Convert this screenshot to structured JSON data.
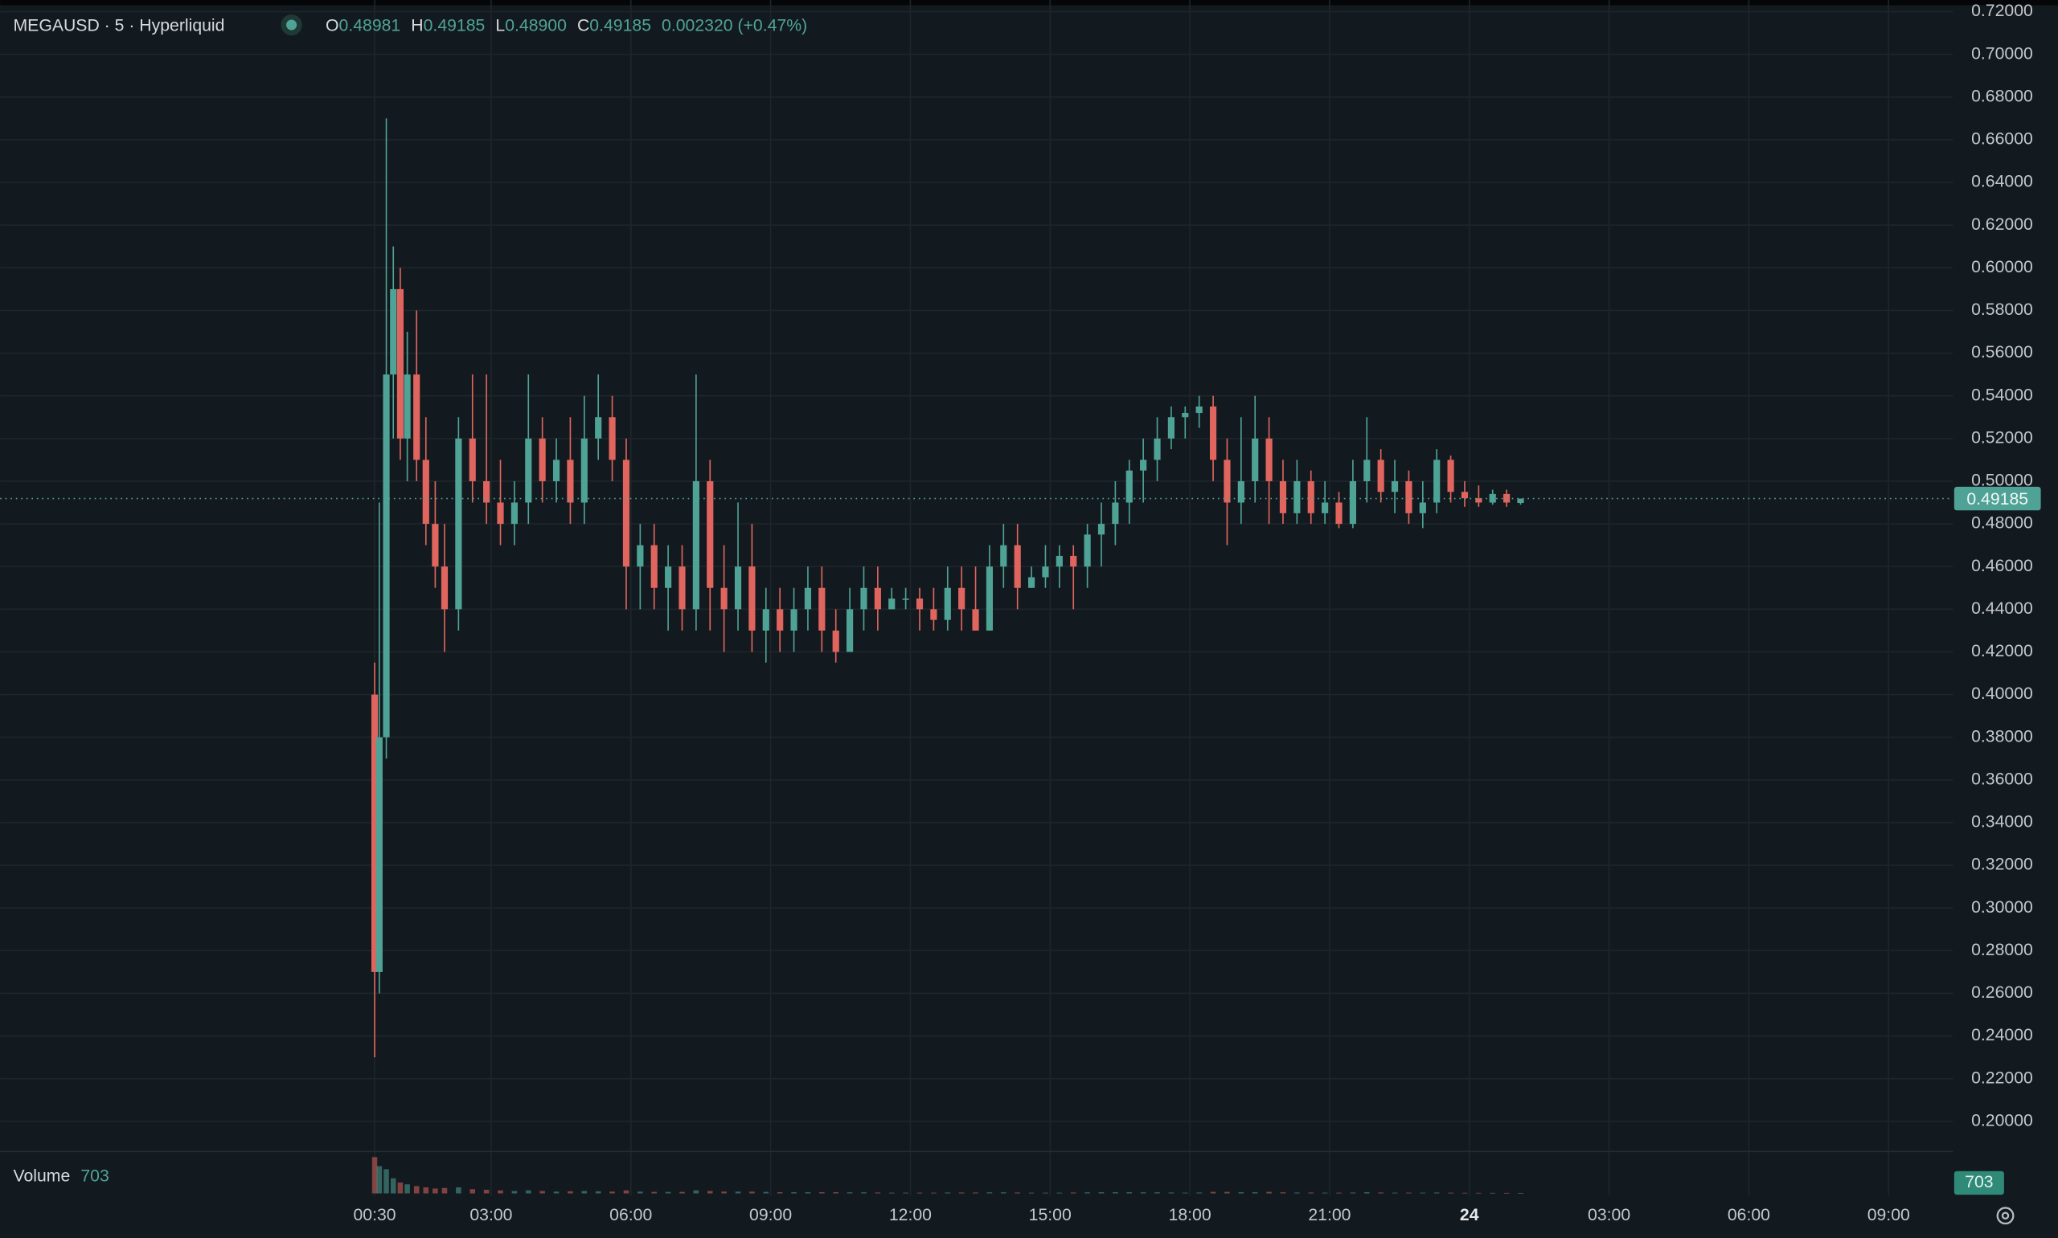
{
  "chart_data": {
    "type": "candlestick",
    "symbol": "MEGAUSD · 5 · Hyperliquid",
    "ohlc_legend": {
      "o_label": "O",
      "open": "0.48981",
      "h_label": "H",
      "high": "0.49185",
      "l_label": "L",
      "low": "0.48900",
      "c_label": "C",
      "close": "0.49185",
      "change": "0.002320 (+0.47%)"
    },
    "last_price": {
      "value": 0.49185,
      "label": "0.49185"
    },
    "volume_label": "Volume",
    "last_volume": "703",
    "volume_badge": "703",
    "up_color": "#4fa396",
    "down_color": "#e0655e",
    "grid": true,
    "xlim": [
      -7.54,
      34.38
    ],
    "ylim": [
      0.1859,
      0.7255
    ],
    "vlim": [
      0,
      65000
    ],
    "xticks": [
      {
        "value": 0.5,
        "label": "00:30"
      },
      {
        "value": 3,
        "label": "03:00"
      },
      {
        "value": 6,
        "label": "06:00"
      },
      {
        "value": 9,
        "label": "09:00"
      },
      {
        "value": 12,
        "label": "12:00"
      },
      {
        "value": 15,
        "label": "15:00"
      },
      {
        "value": 18,
        "label": "18:00"
      },
      {
        "value": 21,
        "label": "21:00"
      },
      24,
      {
        "value": 27,
        "label": "03:00"
      },
      {
        "value": 30,
        "label": "06:00"
      },
      {
        "value": 33,
        "label": "09:00"
      }
    ],
    "yticks": [
      {
        "value": 0.2,
        "label": "0.20000"
      },
      {
        "value": 0.22,
        "label": "0.22000"
      },
      {
        "value": 0.24,
        "label": "0.24000"
      },
      {
        "value": 0.26,
        "label": "0.26000"
      },
      {
        "value": 0.28,
        "label": "0.28000"
      },
      {
        "value": 0.3,
        "label": "0.30000"
      },
      {
        "value": 0.32,
        "label": "0.32000"
      },
      {
        "value": 0.34,
        "label": "0.34000"
      },
      {
        "value": 0.36,
        "label": "0.36000"
      },
      {
        "value": 0.38,
        "label": "0.38000"
      },
      {
        "value": 0.4,
        "label": "0.40000"
      },
      {
        "value": 0.42,
        "label": "0.42000"
      },
      {
        "value": 0.44,
        "label": "0.44000"
      },
      {
        "value": 0.46,
        "label": "0.46000"
      },
      {
        "value": 0.48,
        "label": "0.48000"
      },
      {
        "value": 0.5,
        "label": "0.50000"
      },
      {
        "value": 0.52,
        "label": "0.52000"
      },
      {
        "value": 0.54,
        "label": "0.54000"
      },
      {
        "value": 0.56,
        "label": "0.56000"
      },
      {
        "value": 0.58,
        "label": "0.58000"
      },
      {
        "value": 0.6,
        "label": "0.60000"
      },
      {
        "value": 0.62,
        "label": "0.62000"
      },
      {
        "value": 0.64,
        "label": "0.64000"
      },
      {
        "value": 0.66,
        "label": "0.66000"
      },
      {
        "value": 0.68,
        "label": "0.68000"
      },
      {
        "value": 0.7,
        "label": "0.70000"
      },
      {
        "value": 0.72,
        "label": "0.72000"
      }
    ],
    "candles": [
      {
        "x": 0.5,
        "open": 0.4,
        "high": 0.415,
        "low": 0.23,
        "close": 0.27,
        "volume": 60000
      },
      {
        "x": 0.6,
        "open": 0.27,
        "high": 0.49,
        "low": 0.26,
        "close": 0.38,
        "volume": 45000
      },
      {
        "x": 0.75,
        "open": 0.38,
        "high": 0.67,
        "low": 0.37,
        "close": 0.55,
        "volume": 40000
      },
      {
        "x": 0.9,
        "open": 0.55,
        "high": 0.61,
        "low": 0.52,
        "close": 0.59,
        "volume": 25000
      },
      {
        "x": 1.05,
        "open": 0.59,
        "high": 0.6,
        "low": 0.51,
        "close": 0.52,
        "volume": 18000
      },
      {
        "x": 1.2,
        "open": 0.52,
        "high": 0.57,
        "low": 0.5,
        "close": 0.55,
        "volume": 15000
      },
      {
        "x": 1.4,
        "open": 0.55,
        "high": 0.58,
        "low": 0.5,
        "close": 0.51,
        "volume": 12000
      },
      {
        "x": 1.6,
        "open": 0.51,
        "high": 0.53,
        "low": 0.47,
        "close": 0.48,
        "volume": 10000
      },
      {
        "x": 1.8,
        "open": 0.48,
        "high": 0.5,
        "low": 0.45,
        "close": 0.46,
        "volume": 8000
      },
      {
        "x": 2.0,
        "open": 0.46,
        "high": 0.48,
        "low": 0.42,
        "close": 0.44,
        "volume": 9000
      },
      {
        "x": 2.3,
        "open": 0.44,
        "high": 0.53,
        "low": 0.43,
        "close": 0.52,
        "volume": 10000
      },
      {
        "x": 2.6,
        "open": 0.52,
        "high": 0.55,
        "low": 0.49,
        "close": 0.5,
        "volume": 7000
      },
      {
        "x": 2.9,
        "open": 0.5,
        "high": 0.55,
        "low": 0.48,
        "close": 0.49,
        "volume": 6000
      },
      {
        "x": 3.2,
        "open": 0.49,
        "high": 0.51,
        "low": 0.47,
        "close": 0.48,
        "volume": 5000
      },
      {
        "x": 3.5,
        "open": 0.48,
        "high": 0.5,
        "low": 0.47,
        "close": 0.49,
        "volume": 4000
      },
      {
        "x": 3.8,
        "open": 0.49,
        "high": 0.55,
        "low": 0.48,
        "close": 0.52,
        "volume": 5000
      },
      {
        "x": 4.1,
        "open": 0.52,
        "high": 0.53,
        "low": 0.49,
        "close": 0.5,
        "volume": 4000
      },
      {
        "x": 4.4,
        "open": 0.5,
        "high": 0.52,
        "low": 0.49,
        "close": 0.51,
        "volume": 3000
      },
      {
        "x": 4.7,
        "open": 0.51,
        "high": 0.53,
        "low": 0.48,
        "close": 0.49,
        "volume": 3500
      },
      {
        "x": 5.0,
        "open": 0.49,
        "high": 0.54,
        "low": 0.48,
        "close": 0.52,
        "volume": 4000
      },
      {
        "x": 5.3,
        "open": 0.52,
        "high": 0.55,
        "low": 0.51,
        "close": 0.53,
        "volume": 3500
      },
      {
        "x": 5.6,
        "open": 0.53,
        "high": 0.54,
        "low": 0.5,
        "close": 0.51,
        "volume": 3000
      },
      {
        "x": 5.9,
        "open": 0.51,
        "high": 0.52,
        "low": 0.44,
        "close": 0.46,
        "volume": 5000
      },
      {
        "x": 6.2,
        "open": 0.46,
        "high": 0.48,
        "low": 0.44,
        "close": 0.47,
        "volume": 3000
      },
      {
        "x": 6.5,
        "open": 0.47,
        "high": 0.48,
        "low": 0.44,
        "close": 0.45,
        "volume": 2500
      },
      {
        "x": 6.8,
        "open": 0.45,
        "high": 0.47,
        "low": 0.43,
        "close": 0.46,
        "volume": 2500
      },
      {
        "x": 7.1,
        "open": 0.46,
        "high": 0.47,
        "low": 0.43,
        "close": 0.44,
        "volume": 2500
      },
      {
        "x": 7.4,
        "open": 0.44,
        "high": 0.55,
        "low": 0.43,
        "close": 0.5,
        "volume": 5000
      },
      {
        "x": 7.7,
        "open": 0.5,
        "high": 0.51,
        "low": 0.43,
        "close": 0.45,
        "volume": 4000
      },
      {
        "x": 8.0,
        "open": 0.45,
        "high": 0.47,
        "low": 0.42,
        "close": 0.44,
        "volume": 3000
      },
      {
        "x": 8.3,
        "open": 0.44,
        "high": 0.49,
        "low": 0.43,
        "close": 0.46,
        "volume": 3000
      },
      {
        "x": 8.6,
        "open": 0.46,
        "high": 0.48,
        "low": 0.42,
        "close": 0.43,
        "volume": 3000
      },
      {
        "x": 8.9,
        "open": 0.43,
        "high": 0.45,
        "low": 0.415,
        "close": 0.44,
        "volume": 2500
      },
      {
        "x": 9.2,
        "open": 0.44,
        "high": 0.45,
        "low": 0.42,
        "close": 0.43,
        "volume": 2000
      },
      {
        "x": 9.5,
        "open": 0.43,
        "high": 0.45,
        "low": 0.42,
        "close": 0.44,
        "volume": 2000
      },
      {
        "x": 9.8,
        "open": 0.44,
        "high": 0.46,
        "low": 0.43,
        "close": 0.45,
        "volume": 2000
      },
      {
        "x": 10.1,
        "open": 0.45,
        "high": 0.46,
        "low": 0.42,
        "close": 0.43,
        "volume": 2000
      },
      {
        "x": 10.4,
        "open": 0.43,
        "high": 0.44,
        "low": 0.415,
        "close": 0.42,
        "volume": 2000
      },
      {
        "x": 10.7,
        "open": 0.42,
        "high": 0.45,
        "low": 0.42,
        "close": 0.44,
        "volume": 1800
      },
      {
        "x": 11.0,
        "open": 0.44,
        "high": 0.46,
        "low": 0.43,
        "close": 0.45,
        "volume": 1800
      },
      {
        "x": 11.3,
        "open": 0.45,
        "high": 0.46,
        "low": 0.43,
        "close": 0.44,
        "volume": 1500
      },
      {
        "x": 11.6,
        "open": 0.44,
        "high": 0.45,
        "low": 0.44,
        "close": 0.445,
        "volume": 1200
      },
      {
        "x": 11.9,
        "open": 0.445,
        "high": 0.45,
        "low": 0.44,
        "close": 0.445,
        "volume": 1200
      },
      {
        "x": 12.2,
        "open": 0.445,
        "high": 0.45,
        "low": 0.43,
        "close": 0.44,
        "volume": 1200
      },
      {
        "x": 12.5,
        "open": 0.44,
        "high": 0.45,
        "low": 0.43,
        "close": 0.435,
        "volume": 1200
      },
      {
        "x": 12.8,
        "open": 0.435,
        "high": 0.46,
        "low": 0.43,
        "close": 0.45,
        "volume": 1500
      },
      {
        "x": 13.1,
        "open": 0.45,
        "high": 0.46,
        "low": 0.43,
        "close": 0.44,
        "volume": 1500
      },
      {
        "x": 13.4,
        "open": 0.44,
        "high": 0.46,
        "low": 0.43,
        "close": 0.43,
        "volume": 1500
      },
      {
        "x": 13.7,
        "open": 0.43,
        "high": 0.47,
        "low": 0.43,
        "close": 0.46,
        "volume": 1800
      },
      {
        "x": 14.0,
        "open": 0.46,
        "high": 0.48,
        "low": 0.45,
        "close": 0.47,
        "volume": 1800
      },
      {
        "x": 14.3,
        "open": 0.47,
        "high": 0.48,
        "low": 0.44,
        "close": 0.45,
        "volume": 1500
      },
      {
        "x": 14.6,
        "open": 0.45,
        "high": 0.46,
        "low": 0.45,
        "close": 0.455,
        "volume": 1200
      },
      {
        "x": 14.9,
        "open": 0.455,
        "high": 0.47,
        "low": 0.45,
        "close": 0.46,
        "volume": 1200
      },
      {
        "x": 15.2,
        "open": 0.46,
        "high": 0.47,
        "low": 0.45,
        "close": 0.465,
        "volume": 1200
      },
      {
        "x": 15.5,
        "open": 0.465,
        "high": 0.47,
        "low": 0.44,
        "close": 0.46,
        "volume": 1500
      },
      {
        "x": 15.8,
        "open": 0.46,
        "high": 0.48,
        "low": 0.45,
        "close": 0.475,
        "volume": 1800
      },
      {
        "x": 16.1,
        "open": 0.475,
        "high": 0.49,
        "low": 0.46,
        "close": 0.48,
        "volume": 2000
      },
      {
        "x": 16.4,
        "open": 0.48,
        "high": 0.5,
        "low": 0.47,
        "close": 0.49,
        "volume": 2000
      },
      {
        "x": 16.7,
        "open": 0.49,
        "high": 0.51,
        "low": 0.48,
        "close": 0.505,
        "volume": 2000
      },
      {
        "x": 17.0,
        "open": 0.505,
        "high": 0.52,
        "low": 0.49,
        "close": 0.51,
        "volume": 1800
      },
      {
        "x": 17.3,
        "open": 0.51,
        "high": 0.53,
        "low": 0.5,
        "close": 0.52,
        "volume": 1800
      },
      {
        "x": 17.6,
        "open": 0.52,
        "high": 0.535,
        "low": 0.515,
        "close": 0.53,
        "volume": 1500
      },
      {
        "x": 17.9,
        "open": 0.53,
        "high": 0.535,
        "low": 0.52,
        "close": 0.532,
        "volume": 1200
      },
      {
        "x": 18.2,
        "open": 0.532,
        "high": 0.54,
        "low": 0.525,
        "close": 0.535,
        "volume": 1500
      },
      {
        "x": 18.5,
        "open": 0.535,
        "high": 0.54,
        "low": 0.5,
        "close": 0.51,
        "volume": 2500
      },
      {
        "x": 18.8,
        "open": 0.51,
        "high": 0.52,
        "low": 0.47,
        "close": 0.49,
        "volume": 2500
      },
      {
        "x": 19.1,
        "open": 0.49,
        "high": 0.53,
        "low": 0.48,
        "close": 0.5,
        "volume": 2000
      },
      {
        "x": 19.4,
        "open": 0.5,
        "high": 0.54,
        "low": 0.49,
        "close": 0.52,
        "volume": 2000
      },
      {
        "x": 19.7,
        "open": 0.52,
        "high": 0.53,
        "low": 0.48,
        "close": 0.5,
        "volume": 2500
      },
      {
        "x": 20.0,
        "open": 0.5,
        "high": 0.51,
        "low": 0.48,
        "close": 0.485,
        "volume": 1800
      },
      {
        "x": 20.3,
        "open": 0.485,
        "high": 0.51,
        "low": 0.48,
        "close": 0.5,
        "volume": 1500
      },
      {
        "x": 20.6,
        "open": 0.5,
        "high": 0.505,
        "low": 0.48,
        "close": 0.485,
        "volume": 1500
      },
      {
        "x": 20.9,
        "open": 0.485,
        "high": 0.5,
        "low": 0.48,
        "close": 0.49,
        "volume": 1200
      },
      {
        "x": 21.2,
        "open": 0.49,
        "high": 0.495,
        "low": 0.478,
        "close": 0.48,
        "volume": 1200
      },
      {
        "x": 21.5,
        "open": 0.48,
        "high": 0.51,
        "low": 0.478,
        "close": 0.5,
        "volume": 1500
      },
      {
        "x": 21.8,
        "open": 0.5,
        "high": 0.53,
        "low": 0.49,
        "close": 0.51,
        "volume": 2000
      },
      {
        "x": 22.1,
        "open": 0.51,
        "high": 0.515,
        "low": 0.49,
        "close": 0.495,
        "volume": 1500
      },
      {
        "x": 22.4,
        "open": 0.495,
        "high": 0.51,
        "low": 0.485,
        "close": 0.5,
        "volume": 1200
      },
      {
        "x": 22.7,
        "open": 0.5,
        "high": 0.505,
        "low": 0.48,
        "close": 0.485,
        "volume": 1200
      },
      {
        "x": 23.0,
        "open": 0.485,
        "high": 0.5,
        "low": 0.478,
        "close": 0.49,
        "volume": 1200
      },
      {
        "x": 23.3,
        "open": 0.49,
        "high": 0.515,
        "low": 0.485,
        "close": 0.51,
        "volume": 1500
      },
      {
        "x": 23.6,
        "open": 0.51,
        "high": 0.512,
        "low": 0.49,
        "close": 0.495,
        "volume": 1200
      },
      {
        "x": 23.9,
        "open": 0.495,
        "high": 0.5,
        "low": 0.488,
        "close": 0.492,
        "volume": 1000
      },
      {
        "x": 24.2,
        "open": 0.492,
        "high": 0.498,
        "low": 0.488,
        "close": 0.49,
        "volume": 900
      },
      {
        "x": 24.5,
        "open": 0.49,
        "high": 0.496,
        "low": 0.489,
        "close": 0.494,
        "volume": 900
      },
      {
        "x": 24.8,
        "open": 0.494,
        "high": 0.496,
        "low": 0.488,
        "close": 0.49,
        "volume": 800
      },
      {
        "x": 25.1,
        "open": 0.48981,
        "high": 0.49185,
        "low": 0.489,
        "close": 0.49185,
        "volume": 703
      }
    ]
  }
}
